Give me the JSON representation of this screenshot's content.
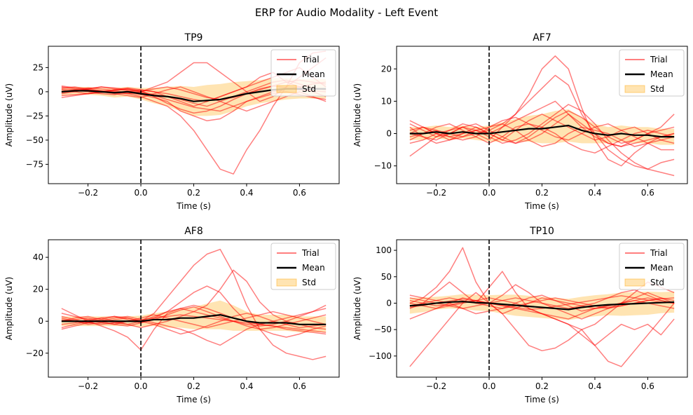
{
  "figure": {
    "suptitle": "ERP for Audio Modality - Left Event"
  },
  "colors": {
    "trial": "#ff0000",
    "mean": "#000000",
    "std_fill": "#ffa500",
    "event_line": "#000000"
  },
  "chart_data": [
    {
      "type": "line",
      "title": "TP9",
      "xlabel": "Time (s)",
      "ylabel": "Amplitude (uV)",
      "xlim": [
        -0.35,
        0.75
      ],
      "ylim": [
        -95,
        47
      ],
      "xticks": [
        -0.2,
        0.0,
        0.2,
        0.4,
        0.6
      ],
      "xtick_labels": [
        "−0.2",
        "0.0",
        "0.2",
        "0.4",
        "0.6"
      ],
      "yticks": [
        25,
        0,
        -25,
        -50,
        -75
      ],
      "ytick_labels": [
        "25",
        "0",
        "−25",
        "−50",
        "−75"
      ],
      "event_time": 0.0,
      "legend": {
        "position": "top-right",
        "entries": [
          "Trial",
          "Mean",
          "Std"
        ]
      },
      "x": [
        -0.3,
        -0.25,
        -0.2,
        -0.15,
        -0.1,
        -0.05,
        0.0,
        0.05,
        0.1,
        0.15,
        0.2,
        0.25,
        0.3,
        0.35,
        0.4,
        0.45,
        0.5,
        0.55,
        0.6,
        0.65,
        0.7
      ],
      "mean": [
        0,
        1,
        1,
        0,
        -1,
        0,
        -2,
        -4,
        -5,
        -7,
        -10,
        -9,
        -8,
        -5,
        -2,
        0,
        2,
        3,
        3,
        3,
        3
      ],
      "std": [
        4,
        4,
        4,
        4,
        5,
        5,
        6,
        8,
        10,
        13,
        15,
        16,
        16,
        15,
        13,
        12,
        12,
        11,
        10,
        10,
        10
      ],
      "trials": [
        [
          5,
          3,
          2,
          1,
          0,
          -2,
          -5,
          -10,
          -15,
          -25,
          -40,
          -60,
          -80,
          -85,
          -60,
          -40,
          -15,
          5,
          15,
          25,
          35
        ],
        [
          -2,
          0,
          3,
          5,
          4,
          2,
          0,
          5,
          10,
          20,
          30,
          30,
          20,
          10,
          0,
          -10,
          -5,
          5,
          30,
          40,
          42
        ],
        [
          3,
          2,
          0,
          -2,
          -3,
          0,
          2,
          0,
          -5,
          -10,
          -15,
          -10,
          -5,
          0,
          5,
          15,
          20,
          10,
          5,
          0,
          -5
        ],
        [
          -4,
          -3,
          -2,
          0,
          2,
          3,
          0,
          -3,
          -5,
          -8,
          -12,
          -15,
          -10,
          -5,
          0,
          5,
          10,
          12,
          8,
          4,
          2
        ],
        [
          0,
          2,
          4,
          3,
          1,
          -1,
          -3,
          -6,
          -10,
          -20,
          -25,
          -30,
          -28,
          -20,
          -10,
          -5,
          0,
          3,
          5,
          8,
          10
        ],
        [
          6,
          4,
          2,
          0,
          -2,
          -4,
          -6,
          -2,
          2,
          5,
          0,
          -5,
          -10,
          -15,
          -20,
          -15,
          -10,
          -5,
          0,
          -5,
          -10
        ],
        [
          -6,
          -4,
          -2,
          0,
          2,
          4,
          2,
          0,
          -2,
          -5,
          -8,
          -10,
          -5,
          0,
          5,
          10,
          15,
          20,
          25,
          15,
          5
        ],
        [
          2,
          0,
          -2,
          -1,
          1,
          3,
          1,
          -5,
          -12,
          -18,
          -22,
          -20,
          -15,
          -8,
          -2,
          3,
          6,
          4,
          2,
          1,
          0
        ],
        [
          -1,
          1,
          3,
          5,
          3,
          1,
          -1,
          -4,
          -8,
          -12,
          -16,
          -18,
          -20,
          -15,
          -10,
          -6,
          -2,
          0,
          -3,
          -6,
          -8
        ],
        [
          4,
          5,
          3,
          1,
          -1,
          -2,
          0,
          3,
          5,
          2,
          -2,
          -6,
          -8,
          -6,
          -2,
          2,
          6,
          10,
          12,
          10,
          8
        ]
      ]
    },
    {
      "type": "line",
      "title": "AF7",
      "xlabel": "Time (s)",
      "ylabel": "Amplitude (uV)",
      "xlim": [
        -0.35,
        0.75
      ],
      "ylim": [
        -15.5,
        27
      ],
      "xticks": [
        -0.2,
        0.0,
        0.2,
        0.4,
        0.6
      ],
      "xtick_labels": [
        "−0.2",
        "0.0",
        "0.2",
        "0.4",
        "0.6"
      ],
      "yticks": [
        20,
        10,
        0,
        -10
      ],
      "ytick_labels": [
        "20",
        "10",
        "0",
        "−10"
      ],
      "event_time": 0.0,
      "legend": {
        "position": "top-right",
        "entries": [
          "Trial",
          "Mean",
          "Std"
        ]
      },
      "x": [
        -0.3,
        -0.25,
        -0.2,
        -0.15,
        -0.1,
        -0.05,
        0.0,
        0.05,
        0.1,
        0.15,
        0.2,
        0.25,
        0.3,
        0.35,
        0.4,
        0.45,
        0.5,
        0.55,
        0.6,
        0.65,
        0.7
      ],
      "mean": [
        0,
        0,
        0.5,
        0,
        0.5,
        0,
        0,
        0.5,
        1,
        1.5,
        1.5,
        2,
        2.5,
        1,
        0,
        -0.5,
        0,
        -0.5,
        -0.5,
        -1,
        -1
      ],
      "std": [
        2,
        2,
        2,
        2,
        2,
        2,
        2.5,
        3,
        3.5,
        4,
        4.5,
        5,
        5,
        4,
        3,
        2.5,
        2.5,
        2.5,
        2.5,
        2.5,
        2.5
      ],
      "trials": [
        [
          -1,
          0,
          1,
          0,
          -1,
          0,
          1,
          3,
          6,
          12,
          20,
          24,
          20,
          8,
          -2,
          -8,
          -10,
          -6,
          -3,
          -1,
          0
        ],
        [
          -7,
          -4,
          -1,
          1,
          2,
          0,
          -2,
          2,
          6,
          10,
          14,
          18,
          15,
          6,
          0,
          -5,
          -8,
          -10,
          -11,
          -9,
          -8
        ],
        [
          3,
          1,
          -1,
          0,
          2,
          3,
          1,
          -1,
          -3,
          -2,
          0,
          3,
          6,
          3,
          0,
          -3,
          -4,
          -2,
          0,
          2,
          6
        ],
        [
          0,
          2,
          1,
          -1,
          -2,
          -1,
          2,
          3,
          1,
          -2,
          -4,
          -3,
          0,
          2,
          1,
          0,
          -2,
          -4,
          -3,
          -2,
          -1
        ],
        [
          2,
          -1,
          -3,
          -2,
          0,
          2,
          0,
          -2,
          1,
          4,
          6,
          4,
          2,
          0,
          -2,
          -1,
          1,
          2,
          0,
          -2,
          -3
        ],
        [
          -2,
          0,
          2,
          3,
          1,
          -1,
          -3,
          -1,
          2,
          3,
          2,
          0,
          -3,
          -5,
          -6,
          -4,
          -2,
          0,
          1,
          0,
          -1
        ],
        [
          1,
          2,
          0,
          -2,
          -1,
          1,
          2,
          4,
          5,
          3,
          1,
          -1,
          -2,
          0,
          2,
          3,
          1,
          -1,
          -3,
          -5,
          -5
        ],
        [
          -3,
          -2,
          0,
          1,
          3,
          2,
          0,
          -2,
          -3,
          -1,
          2,
          5,
          7,
          5,
          2,
          -1,
          -3,
          -2,
          0,
          1,
          2
        ],
        [
          4,
          2,
          0,
          -1,
          0,
          1,
          -1,
          -3,
          -2,
          0,
          3,
          6,
          9,
          7,
          3,
          -2,
          -6,
          -9,
          -11,
          -12,
          -13
        ],
        [
          0,
          -1,
          -2,
          0,
          2,
          1,
          0,
          2,
          4,
          6,
          8,
          10,
          6,
          2,
          -1,
          -3,
          -4,
          -3,
          -2,
          -1,
          0
        ]
      ]
    },
    {
      "type": "line",
      "title": "AF8",
      "xlabel": "Time (s)",
      "ylabel": "Amplitude (uV)",
      "xlim": [
        -0.35,
        0.75
      ],
      "ylim": [
        -35,
        51
      ],
      "xticks": [
        -0.2,
        0.0,
        0.2,
        0.4,
        0.6
      ],
      "xtick_labels": [
        "−0.2",
        "0.0",
        "0.2",
        "0.4",
        "0.6"
      ],
      "yticks": [
        40,
        20,
        0,
        -20
      ],
      "ytick_labels": [
        "40",
        "20",
        "0",
        "−20"
      ],
      "event_time": 0.0,
      "legend": {
        "position": "top-right",
        "entries": [
          "Trial",
          "Mean",
          "Std"
        ]
      },
      "x": [
        -0.3,
        -0.25,
        -0.2,
        -0.15,
        -0.1,
        -0.05,
        0.0,
        0.05,
        0.1,
        0.15,
        0.2,
        0.25,
        0.3,
        0.35,
        0.4,
        0.45,
        0.5,
        0.55,
        0.6,
        0.65,
        0.7
      ],
      "mean": [
        0,
        0,
        0,
        0,
        0,
        0,
        0,
        1,
        1,
        2,
        2,
        3,
        4,
        2,
        0,
        -1,
        -1,
        -1,
        -2,
        -2,
        -2
      ],
      "std": [
        3,
        3,
        3,
        3,
        3,
        3,
        3.5,
        4,
        5,
        6,
        7,
        8,
        9,
        8,
        6,
        5,
        5,
        5,
        5,
        5,
        5
      ],
      "trials": [
        [
          2,
          0,
          -2,
          -1,
          1,
          2,
          0,
          5,
          15,
          25,
          35,
          42,
          45,
          30,
          10,
          -5,
          -15,
          -20,
          -22,
          -24,
          -22
        ],
        [
          8,
          4,
          0,
          -3,
          -6,
          -10,
          -18,
          -5,
          5,
          8,
          6,
          4,
          2,
          0,
          -2,
          -3,
          -2,
          0,
          3,
          6,
          10
        ],
        [
          -4,
          -2,
          0,
          2,
          3,
          1,
          -1,
          2,
          6,
          12,
          18,
          22,
          18,
          8,
          0,
          -5,
          -8,
          -10,
          -8,
          -5,
          -3
        ],
        [
          3,
          1,
          -1,
          0,
          2,
          3,
          1,
          -1,
          -3,
          -5,
          -8,
          -12,
          -15,
          -10,
          -5,
          -2,
          0,
          2,
          4,
          6,
          8
        ],
        [
          0,
          2,
          3,
          1,
          -1,
          -2,
          0,
          3,
          6,
          8,
          10,
          8,
          5,
          2,
          0,
          -2,
          -3,
          -5,
          -6,
          -7,
          -8
        ],
        [
          -2,
          -1,
          1,
          2,
          0,
          -2,
          -4,
          -2,
          0,
          3,
          6,
          10,
          20,
          32,
          25,
          12,
          4,
          0,
          -2,
          -4,
          -5
        ],
        [
          5,
          3,
          1,
          -1,
          -2,
          0,
          2,
          4,
          2,
          0,
          -2,
          -4,
          -2,
          0,
          2,
          4,
          6,
          4,
          2,
          0,
          -2
        ],
        [
          -5,
          -3,
          -1,
          1,
          3,
          2,
          0,
          -2,
          -5,
          -8,
          -6,
          -3,
          0,
          3,
          5,
          3,
          0,
          -2,
          -4,
          -3,
          -2
        ],
        [
          1,
          0,
          -1,
          -2,
          -1,
          0,
          1,
          2,
          3,
          4,
          3,
          2,
          1,
          0,
          -1,
          -2,
          -3,
          -4,
          -5,
          -6,
          -7
        ],
        [
          0,
          1,
          2,
          0,
          -2,
          -3,
          -1,
          1,
          4,
          7,
          9,
          6,
          3,
          0,
          -3,
          -5,
          -4,
          -2,
          0,
          2,
          4
        ]
      ]
    },
    {
      "type": "line",
      "title": "TP10",
      "xlabel": "Time (s)",
      "ylabel": "Amplitude (uV)",
      "xlim": [
        -0.35,
        0.75
      ],
      "ylim": [
        -140,
        120
      ],
      "xticks": [
        -0.2,
        0.0,
        0.2,
        0.4,
        0.6
      ],
      "xtick_labels": [
        "−0.2",
        "0.0",
        "0.2",
        "0.4",
        "0.6"
      ],
      "yticks": [
        100,
        50,
        0,
        -50,
        -100
      ],
      "ytick_labels": [
        "100",
        "50",
        "0",
        "−50",
        "−100"
      ],
      "event_time": 0.0,
      "legend": {
        "position": "top-right",
        "entries": [
          "Trial",
          "Mean",
          "Std"
        ]
      },
      "x": [
        -0.3,
        -0.25,
        -0.2,
        -0.15,
        -0.1,
        -0.05,
        0.0,
        0.05,
        0.1,
        0.15,
        0.2,
        0.25,
        0.3,
        0.35,
        0.4,
        0.45,
        0.5,
        0.55,
        0.6,
        0.65,
        0.7
      ],
      "mean": [
        -5,
        -3,
        0,
        2,
        3,
        1,
        0,
        -2,
        -4,
        -6,
        -8,
        -10,
        -12,
        -8,
        -5,
        -3,
        -2,
        -1,
        0,
        1,
        2
      ],
      "std": [
        15,
        14,
        12,
        12,
        14,
        15,
        15,
        18,
        20,
        20,
        20,
        20,
        20,
        20,
        20,
        20,
        22,
        22,
        22,
        20,
        20
      ],
      "trials": [
        [
          -120,
          -90,
          -60,
          -30,
          0,
          20,
          0,
          -20,
          -50,
          -80,
          -90,
          -85,
          -70,
          -50,
          -80,
          -110,
          -120,
          -90,
          -60,
          -30,
          0
        ],
        [
          0,
          10,
          30,
          60,
          105,
          40,
          0,
          -20,
          -10,
          0,
          10,
          5,
          0,
          -5,
          -10,
          -8,
          -5,
          0,
          5,
          8,
          10
        ],
        [
          -10,
          0,
          20,
          40,
          20,
          0,
          30,
          60,
          20,
          -10,
          -20,
          -30,
          -40,
          -50,
          -40,
          -20,
          0,
          20,
          40,
          30,
          20
        ],
        [
          5,
          0,
          -5,
          -3,
          2,
          5,
          0,
          -5,
          -10,
          -15,
          -20,
          -25,
          -30,
          -20,
          -10,
          -5,
          0,
          5,
          10,
          5,
          0
        ],
        [
          -30,
          -20,
          -10,
          0,
          10,
          5,
          0,
          15,
          35,
          20,
          0,
          -10,
          -20,
          -30,
          -20,
          -10,
          0,
          10,
          20,
          10,
          0
        ],
        [
          10,
          5,
          0,
          -5,
          -10,
          -5,
          0,
          5,
          10,
          5,
          0,
          -5,
          -10,
          -5,
          0,
          10,
          20,
          25,
          15,
          5,
          0
        ],
        [
          0,
          -5,
          -10,
          -5,
          0,
          5,
          10,
          5,
          0,
          -10,
          -20,
          -30,
          -40,
          -60,
          -80,
          -60,
          -40,
          -50,
          -40,
          -60,
          -30
        ],
        [
          -5,
          0,
          5,
          10,
          5,
          0,
          -5,
          -10,
          -5,
          0,
          5,
          10,
          5,
          0,
          -5,
          -10,
          -5,
          0,
          5,
          10,
          5
        ],
        [
          15,
          10,
          5,
          0,
          -10,
          -20,
          -15,
          -10,
          0,
          10,
          15,
          5,
          -5,
          -15,
          -10,
          -5,
          0,
          5,
          0,
          -5,
          -10
        ],
        [
          -8,
          -4,
          0,
          4,
          8,
          4,
          0,
          -4,
          -8,
          -12,
          -10,
          -6,
          -2,
          2,
          6,
          10,
          14,
          10,
          6,
          2,
          0
        ]
      ]
    }
  ]
}
